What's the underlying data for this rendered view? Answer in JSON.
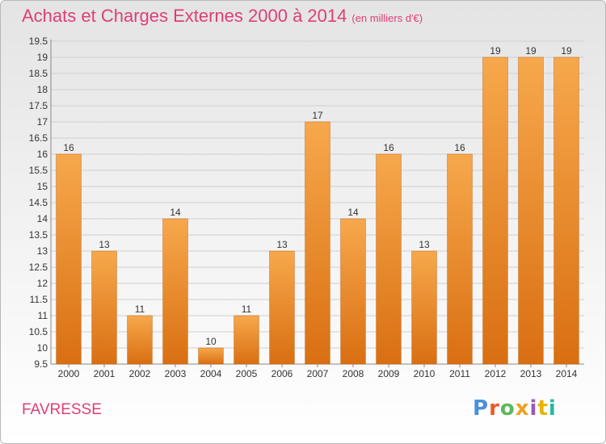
{
  "header": {
    "title": "Achats et Charges Externes 2000 à 2014",
    "unit": "(en milliers d'€)"
  },
  "footer": {
    "city": "FAVRESSE",
    "logo_letters": [
      "P",
      "r",
      "o",
      "x",
      "i",
      "t",
      "i"
    ]
  },
  "colors": {
    "title": "#de3e78",
    "bar_top": "#f7a84c",
    "bar_bottom": "#d96f12",
    "grid": "#cfcfcf"
  },
  "chart_data": {
    "type": "bar",
    "title": "Achats et Charges Externes 2000 à 2014",
    "subtitle": "(en milliers d'€)",
    "categories": [
      "2000",
      "2001",
      "2002",
      "2003",
      "2004",
      "2005",
      "2006",
      "2007",
      "2008",
      "2009",
      "2010",
      "2011",
      "2012",
      "2013",
      "2014"
    ],
    "values": [
      16,
      13,
      11,
      14,
      10,
      11,
      13,
      17,
      14,
      16,
      13,
      16,
      19,
      19,
      19
    ],
    "data_labels": [
      "16",
      "13",
      "11",
      "14",
      "10",
      "11",
      "13",
      "17",
      "14",
      "16",
      "13",
      "16",
      "19",
      "19",
      "19"
    ],
    "ylim": [
      9.5,
      19.5
    ],
    "yticks": [
      "9.5",
      "10",
      "10.5",
      "11",
      "11.5",
      "12",
      "12.5",
      "13",
      "13.5",
      "14",
      "14.5",
      "15",
      "15.5",
      "16",
      "16.5",
      "17",
      "17.5",
      "18",
      "18.5",
      "19",
      "19.5"
    ],
    "grid": true,
    "legend": "none"
  }
}
